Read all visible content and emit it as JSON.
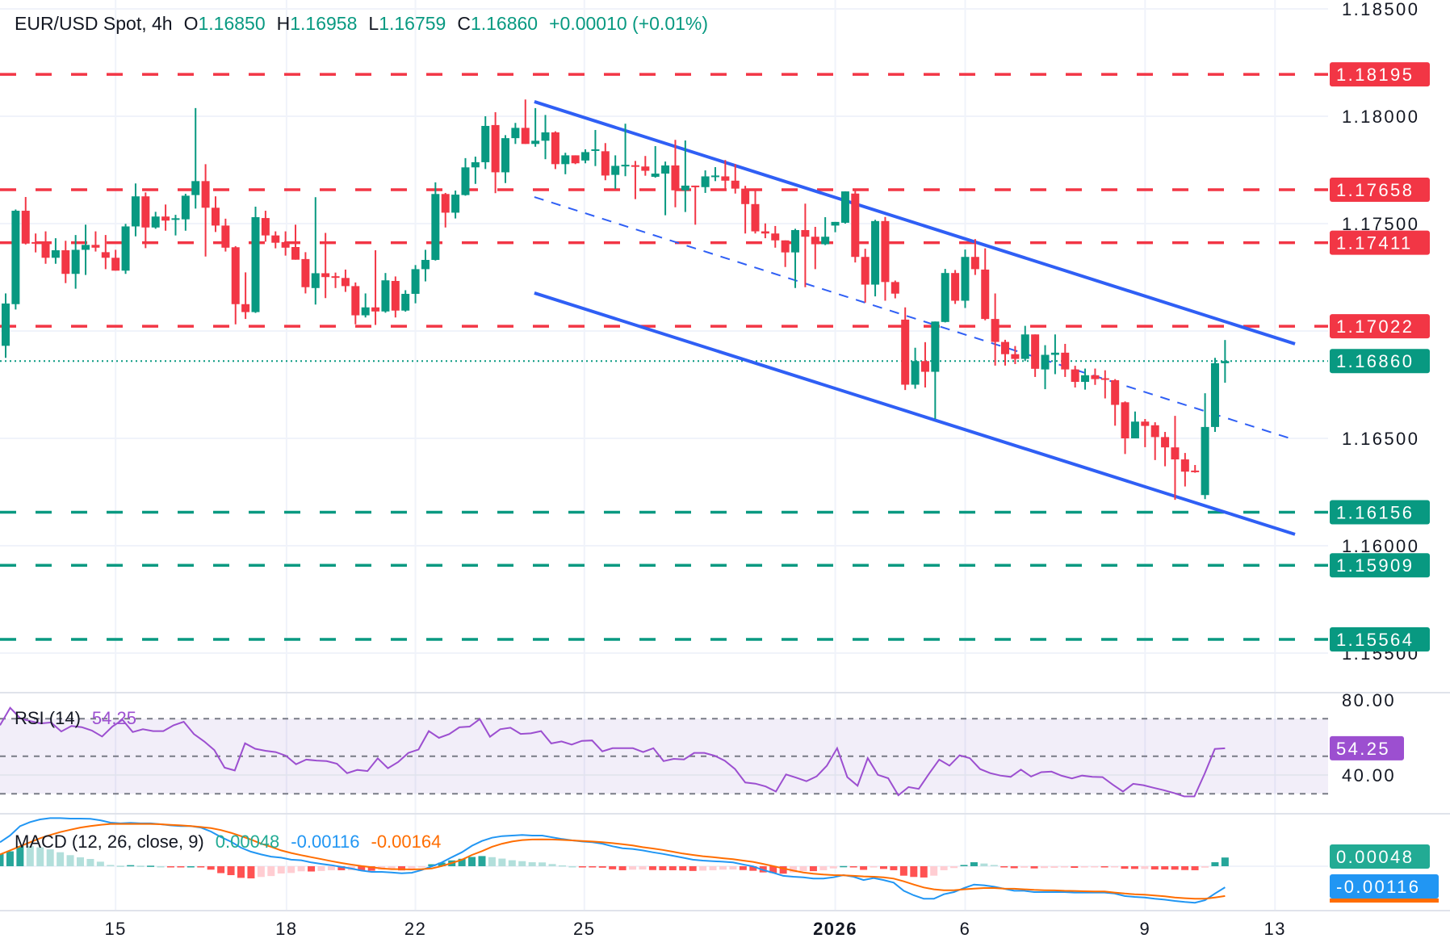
{
  "legend": {
    "title": "EUR/USD Spot, 4h",
    "open_label": "O",
    "open": "1.16850",
    "high_label": "H",
    "high": "1.16958",
    "low_label": "L",
    "low": "1.16759",
    "close_label": "C",
    "close": "1.16860",
    "change": "+0.00010 (+0.01%)"
  },
  "colors": {
    "up": "#089981",
    "down": "#f23645",
    "trendline": "#2f5ff5",
    "rsi": "#9c4fd0",
    "macd": "#2196f3",
    "signal": "#ff6d00",
    "hist_up_strong": "#26a69a",
    "hist_up_weak": "#b2dfdb",
    "hist_down_strong": "#ff5252",
    "hist_down_weak": "#ffcdd2"
  },
  "chart_data": {
    "type": "candlestick",
    "y_ticks": [
      "1.18500",
      "1.18000",
      "1.17500",
      "1.16500",
      "1.16000",
      "1.15500"
    ],
    "x_ticks": [
      {
        "label": "15",
        "bar": 11,
        "bold": false
      },
      {
        "label": "18",
        "bar": 28.1,
        "bold": false
      },
      {
        "label": "22",
        "bar": 41,
        "bold": false
      },
      {
        "label": "25",
        "bar": 57.9,
        "bold": false
      },
      {
        "label": "2026",
        "bar": 83,
        "bold": true
      },
      {
        "label": "6",
        "bar": 96,
        "bold": false
      },
      {
        "label": "9",
        "bar": 114,
        "bold": false
      },
      {
        "label": "13",
        "bar": 127,
        "bold": false
      }
    ],
    "grid": true,
    "candles_ohlc": [
      [
        1.16931,
        1.17175,
        1.16875,
        1.17128
      ],
      [
        1.17125,
        1.17566,
        1.171,
        1.1756
      ],
      [
        1.1756,
        1.17624,
        1.17403,
        1.17407
      ],
      [
        1.17414,
        1.17454,
        1.17366,
        1.17407
      ],
      [
        1.17414,
        1.17464,
        1.17313,
        1.17341
      ],
      [
        1.17341,
        1.17432,
        1.17313,
        1.17376
      ],
      [
        1.17376,
        1.1742,
        1.17223,
        1.17266
      ],
      [
        1.17266,
        1.17447,
        1.17197,
        1.17378
      ],
      [
        1.17378,
        1.17495,
        1.17261,
        1.17401
      ],
      [
        1.17401,
        1.17464,
        1.1737,
        1.17388
      ],
      [
        1.17367,
        1.17447,
        1.17288,
        1.17341
      ],
      [
        1.17341,
        1.17378,
        1.17281,
        1.17281
      ],
      [
        1.17281,
        1.17499,
        1.17266,
        1.17487
      ],
      [
        1.17487,
        1.17687,
        1.17441,
        1.17627
      ],
      [
        1.17627,
        1.17645,
        1.17386,
        1.17482
      ],
      [
        1.17482,
        1.17555,
        1.17476,
        1.17533
      ],
      [
        1.17533,
        1.17589,
        1.17467,
        1.17514
      ],
      [
        1.1752,
        1.17541,
        1.17445,
        1.17525
      ],
      [
        1.1752,
        1.17639,
        1.17467,
        1.1763
      ],
      [
        1.17633,
        1.18038,
        1.1757,
        1.17698
      ],
      [
        1.17698,
        1.17777,
        1.17347,
        1.17574
      ],
      [
        1.17574,
        1.17627,
        1.17461,
        1.17491
      ],
      [
        1.17491,
        1.17523,
        1.1737,
        1.17388
      ],
      [
        1.1739,
        1.17395,
        1.17031,
        1.17125
      ],
      [
        1.17125,
        1.17273,
        1.17056,
        1.17088
      ],
      [
        1.17088,
        1.17579,
        1.17084,
        1.1753
      ],
      [
        1.17526,
        1.1756,
        1.17416,
        1.17445
      ],
      [
        1.17445,
        1.17464,
        1.17385,
        1.17411
      ],
      [
        1.17414,
        1.17464,
        1.17351,
        1.17388
      ],
      [
        1.17391,
        1.17495,
        1.17332,
        1.17332
      ],
      [
        1.17335,
        1.17367,
        1.17175,
        1.17204
      ],
      [
        1.172,
        1.17623,
        1.17123,
        1.17269
      ],
      [
        1.17269,
        1.17457,
        1.17153,
        1.17251
      ],
      [
        1.17255,
        1.17272,
        1.172,
        1.17251
      ],
      [
        1.17247,
        1.17286,
        1.17182,
        1.17209
      ],
      [
        1.17209,
        1.17226,
        1.17031,
        1.17073
      ],
      [
        1.17073,
        1.17175,
        1.17063,
        1.1711
      ],
      [
        1.1711,
        1.17376,
        1.17028,
        1.17091
      ],
      [
        1.17091,
        1.1727,
        1.17085,
        1.17236
      ],
      [
        1.17233,
        1.17254,
        1.17063,
        1.17095
      ],
      [
        1.17095,
        1.1719,
        1.1709,
        1.17173
      ],
      [
        1.17173,
        1.17307,
        1.17129,
        1.17288
      ],
      [
        1.17288,
        1.17378,
        1.17231,
        1.17331
      ],
      [
        1.17331,
        1.17692,
        1.17328,
        1.17638
      ],
      [
        1.17638,
        1.17643,
        1.17482,
        1.17551
      ],
      [
        1.17551,
        1.17654,
        1.17524,
        1.17635
      ],
      [
        1.17633,
        1.17805,
        1.1763,
        1.17762
      ],
      [
        1.17762,
        1.17812,
        1.17685,
        1.17786
      ],
      [
        1.17786,
        1.18,
        1.17754,
        1.17955
      ],
      [
        1.17959,
        1.18019,
        1.17642,
        1.17739
      ],
      [
        1.17739,
        1.17912,
        1.17689,
        1.17898
      ],
      [
        1.17898,
        1.17969,
        1.17871,
        1.17946
      ],
      [
        1.17946,
        1.18078,
        1.17871,
        1.17871
      ],
      [
        1.17871,
        1.18038,
        1.17858,
        1.17886
      ],
      [
        1.17886,
        1.18006,
        1.178,
        1.17925
      ],
      [
        1.17925,
        1.1793,
        1.17754,
        1.17777
      ],
      [
        1.17777,
        1.1783,
        1.1773,
        1.17818
      ],
      [
        1.17818,
        1.17818,
        1.17777,
        1.17781
      ],
      [
        1.17794,
        1.17846,
        1.17781,
        1.17833
      ],
      [
        1.17843,
        1.17936,
        1.17768,
        1.17846
      ],
      [
        1.17837,
        1.17875,
        1.17702,
        1.17724
      ],
      [
        1.17727,
        1.17818,
        1.17662,
        1.17769
      ],
      [
        1.17771,
        1.17965,
        1.17721,
        1.17774
      ],
      [
        1.17772,
        1.17792,
        1.17614,
        1.17766
      ],
      [
        1.17766,
        1.17815,
        1.17723,
        1.17746
      ],
      [
        1.17718,
        1.17861,
        1.17714,
        1.17733
      ],
      [
        1.17733,
        1.17789,
        1.17539,
        1.17771
      ],
      [
        1.17771,
        1.1789,
        1.17576,
        1.17655
      ],
      [
        1.17655,
        1.17887,
        1.17554,
        1.17677
      ],
      [
        1.17677,
        1.17677,
        1.17495,
        1.17674
      ],
      [
        1.1767,
        1.17748,
        1.17643,
        1.1772
      ],
      [
        1.1772,
        1.17763,
        1.17698,
        1.17724
      ],
      [
        1.1772,
        1.17796,
        1.17662,
        1.177
      ],
      [
        1.177,
        1.17777,
        1.1764,
        1.17663
      ],
      [
        1.17663,
        1.17676,
        1.17454,
        1.17591
      ],
      [
        1.17591,
        1.17663,
        1.17454,
        1.17464
      ],
      [
        1.17464,
        1.17501,
        1.17432,
        1.17454
      ],
      [
        1.17454,
        1.17489,
        1.17388,
        1.17422
      ],
      [
        1.17422,
        1.17422,
        1.17298,
        1.17366
      ],
      [
        1.17366,
        1.17476,
        1.172,
        1.1747
      ],
      [
        1.1747,
        1.17593,
        1.17204,
        1.17439
      ],
      [
        1.17439,
        1.17485,
        1.17288,
        1.17404
      ],
      [
        1.17404,
        1.1753,
        1.174,
        1.17439
      ],
      [
        1.17491,
        1.17508,
        1.1746,
        1.17508
      ],
      [
        1.17504,
        1.1765,
        1.175,
        1.1765
      ],
      [
        1.1764,
        1.1766,
        1.17319,
        1.17345
      ],
      [
        1.17345,
        1.17383,
        1.17132,
        1.17216
      ],
      [
        1.17216,
        1.17518,
        1.17161,
        1.17512
      ],
      [
        1.17512,
        1.17531,
        1.17141,
        1.17228
      ],
      [
        1.17228,
        1.17235,
        1.17152,
        1.17174
      ],
      [
        1.17053,
        1.1711,
        1.16725,
        1.1675
      ],
      [
        1.1675,
        1.16922,
        1.16731,
        1.1686
      ],
      [
        1.1686,
        1.16948,
        1.16737,
        1.1681
      ],
      [
        1.1681,
        1.17044,
        1.1659,
        1.17044
      ],
      [
        1.17042,
        1.17289,
        1.1704,
        1.1727
      ],
      [
        1.1727,
        1.17284,
        1.17126,
        1.17141
      ],
      [
        1.17141,
        1.17379,
        1.17107,
        1.17345
      ],
      [
        1.17345,
        1.17428,
        1.17261,
        1.17288
      ],
      [
        1.17286,
        1.17385,
        1.1705,
        1.17056
      ],
      [
        1.17056,
        1.17175,
        1.16839,
        1.16949
      ],
      [
        1.16949,
        1.16959,
        1.16839,
        1.16892
      ],
      [
        1.16892,
        1.1693,
        1.16846,
        1.1687
      ],
      [
        1.1687,
        1.17024,
        1.1686,
        1.16984
      ],
      [
        1.16984,
        1.16984,
        1.16786,
        1.16824
      ],
      [
        1.16821,
        1.16934,
        1.16729,
        1.16889
      ],
      [
        1.16889,
        1.16984,
        1.16799,
        1.16899
      ],
      [
        1.16899,
        1.1694,
        1.16786,
        1.16821
      ],
      [
        1.16821,
        1.16838,
        1.16737,
        1.16763
      ],
      [
        1.16763,
        1.16825,
        1.16727,
        1.16794
      ],
      [
        1.16794,
        1.16825,
        1.16749,
        1.16776
      ],
      [
        1.1678,
        1.16817,
        1.16686,
        1.16776
      ],
      [
        1.16771,
        1.16776,
        1.16559,
        1.16656
      ],
      [
        1.16668,
        1.16672,
        1.16427,
        1.165
      ],
      [
        1.165,
        1.16625,
        1.165,
        1.16578
      ],
      [
        1.16578,
        1.1659,
        1.16459,
        1.16558
      ],
      [
        1.16561,
        1.16575,
        1.16399,
        1.16506
      ],
      [
        1.16506,
        1.1653,
        1.1637,
        1.16458
      ],
      [
        1.16458,
        1.16605,
        1.16214,
        1.16402
      ],
      [
        1.16402,
        1.16432,
        1.16276,
        1.16345
      ],
      [
        1.1635,
        1.16376,
        1.1634,
        1.16345
      ],
      [
        1.16236,
        1.1671,
        1.16217,
        1.16553
      ],
      [
        1.16553,
        1.16875,
        1.1653,
        1.1685
      ],
      [
        1.1685,
        1.16958,
        1.16759,
        1.1686
      ]
    ],
    "current_price": "1.16860",
    "resistance_levels": [
      "1.18195",
      "1.17658",
      "1.17411",
      "1.17022"
    ],
    "support_levels": [
      "1.16156",
      "1.15909",
      "1.15564"
    ],
    "trendlines": [
      {
        "role": "channel-upper",
        "style": "solid",
        "start": {
          "bar": 52.9,
          "price": 1.18068
        },
        "end": {
          "bar": 129,
          "price": 1.1694
        }
      },
      {
        "role": "channel-mid",
        "style": "dashed",
        "start": {
          "bar": 52.9,
          "price": 1.17624
        },
        "end": {
          "bar": 128.5,
          "price": 1.165
        }
      },
      {
        "role": "channel-lower",
        "style": "solid",
        "start": {
          "bar": 52.9,
          "price": 1.17177
        },
        "end": {
          "bar": 129,
          "price": 1.16053
        }
      }
    ],
    "rsi": {
      "label": "RSI (14)",
      "last": "54.25",
      "axis_ticks": [
        "80.00",
        "40.00"
      ],
      "bands": [
        70,
        50,
        30
      ],
      "values": [
        66.5,
        75.8,
        70.1,
        68.7,
        67.5,
        68.0,
        63.2,
        66.1,
        65.5,
        63.7,
        60.5,
        65.8,
        69.4,
        62.9,
        64.4,
        63.4,
        63.4,
        66.5,
        68.4,
        61.8,
        57.9,
        53.3,
        43.9,
        42.4,
        56.9,
        54.0,
        52.9,
        52.2,
        50.3,
        45.7,
        48.2,
        47.7,
        47.4,
        46.0,
        41.0,
        42.7,
        42.1,
        48.9,
        43.6,
        46.9,
        51.8,
        53.6,
        63.4,
        59.8,
        61.8,
        65.4,
        65.8,
        69.8,
        60.4,
        64.4,
        65.2,
        61.9,
        62.2,
        63.4,
        56.8,
        57.9,
        56.2,
        58.2,
        58.4,
        52.6,
        54.3,
        54.3,
        54.3,
        52.2,
        54.3,
        47.4,
        48.6,
        48.3,
        51.8,
        51.8,
        50.3,
        47.6,
        43.2,
        36.0,
        35.4,
        33.9,
        31.2,
        40.3,
        38.6,
        36.7,
        39.3,
        45.0,
        54.3,
        38.9,
        34.3,
        49.0,
        40.1,
        38.3,
        29.2,
        33.6,
        32.6,
        40.7,
        48.2,
        45.0,
        50.5,
        49.0,
        43.2,
        41.0,
        39.7,
        39.0,
        42.9,
        39.2,
        41.5,
        41.8,
        39.6,
        38.2,
        39.7,
        39.0,
        38.9,
        34.9,
        31.2,
        35.3,
        34.6,
        33.2,
        31.9,
        30.4,
        28.6,
        28.6,
        40.7,
        53.9,
        54.25
      ]
    },
    "macd": {
      "label": "MACD (12, 26, close, 9)",
      "histogram_last": "0.00048",
      "macd_last": "-0.00116",
      "signal_last": "-0.00164",
      "macd_values": [
        0.00132,
        0.00169,
        0.00221,
        0.00243,
        0.00258,
        0.00265,
        0.00265,
        0.00262,
        0.00262,
        0.00261,
        0.00253,
        0.0024,
        0.00236,
        0.00239,
        0.00236,
        0.00236,
        0.00231,
        0.00225,
        0.00221,
        0.00221,
        0.00213,
        0.00191,
        0.00161,
        0.00135,
        0.00102,
        0.0008,
        0.00065,
        0.00053,
        0.00047,
        0.00036,
        0.00033,
        0.00021,
        0.00013,
        6e-05,
        -4e-05,
        -0.00013,
        -0.00024,
        -0.00031,
        -0.00031,
        -0.00034,
        -0.00039,
        -0.00036,
        -0.00021,
        -1e-05,
        0.00021,
        0.0005,
        0.00077,
        0.00113,
        0.00139,
        0.00157,
        0.00166,
        0.00169,
        0.00172,
        0.00169,
        0.00169,
        0.00159,
        0.0015,
        0.00142,
        0.00136,
        0.00132,
        0.00124,
        0.0011,
        0.00099,
        0.00095,
        0.00087,
        0.00077,
        0.00068,
        0.00058,
        0.00047,
        0.00036,
        0.00031,
        0.00028,
        0.00025,
        0.00021,
        0.0001,
        -1e-05,
        -0.00021,
        -0.00036,
        -0.00053,
        -0.00058,
        -0.00061,
        -0.00068,
        -0.00068,
        -0.00061,
        -0.00049,
        -0.00058,
        -0.00076,
        -0.00065,
        -0.00076,
        -0.0009,
        -0.00135,
        -0.0016,
        -0.00179,
        -0.00179,
        -0.00154,
        -0.00142,
        -0.0012,
        -0.00101,
        -0.00105,
        -0.00113,
        -0.00124,
        -0.00135,
        -0.00135,
        -0.00142,
        -0.00142,
        -0.00142,
        -0.00142,
        -0.00145,
        -0.00145,
        -0.00145,
        -0.00145,
        -0.0015,
        -0.00164,
        -0.00169,
        -0.00172,
        -0.00179,
        -0.00184,
        -0.00191,
        -0.00197,
        -0.00201,
        -0.00187,
        -0.0015,
        -0.00116
      ],
      "signal_values": [
        0.00065,
        0.00087,
        0.0011,
        0.00132,
        0.00154,
        0.00172,
        0.00188,
        0.00201,
        0.00213,
        0.00221,
        0.00228,
        0.00233,
        0.00233,
        0.00233,
        0.00233,
        0.00233,
        0.00231,
        0.00228,
        0.00225,
        0.00221,
        0.00216,
        0.0021,
        0.00199,
        0.00184,
        0.00166,
        0.00147,
        0.00124,
        0.00107,
        0.00087,
        0.00073,
        0.00061,
        0.0005,
        0.00039,
        0.00028,
        0.00018,
        9e-05,
        1e-05,
        -6e-05,
        -0.00012,
        -0.00016,
        -0.00016,
        -0.00018,
        -0.00016,
        -0.00012,
        1e-05,
        0.00018,
        0.00036,
        0.00062,
        0.00083,
        0.00107,
        0.00124,
        0.00136,
        0.00144,
        0.00147,
        0.00148,
        0.00147,
        0.00145,
        0.00142,
        0.00139,
        0.00136,
        0.00132,
        0.00127,
        0.00121,
        0.00114,
        0.00105,
        0.00098,
        0.0009,
        0.0008,
        0.0007,
        0.00062,
        0.00055,
        0.0005,
        0.00044,
        0.00039,
        0.00031,
        0.00024,
        0.00013,
        1e-05,
        -0.00012,
        -0.00024,
        -0.00034,
        -0.00041,
        -0.00046,
        -0.00049,
        -0.0005,
        -0.00053,
        -0.00056,
        -0.00058,
        -0.00061,
        -0.00068,
        -0.00083,
        -0.00101,
        -0.00117,
        -0.00127,
        -0.00132,
        -0.00132,
        -0.00127,
        -0.00123,
        -0.0012,
        -0.0012,
        -0.00123,
        -0.00124,
        -0.00127,
        -0.0013,
        -0.00132,
        -0.00133,
        -0.00135,
        -0.00136,
        -0.00138,
        -0.00139,
        -0.00139,
        -0.00145,
        -0.0015,
        -0.00154,
        -0.00157,
        -0.00161,
        -0.00166,
        -0.00172,
        -0.00176,
        -0.00179,
        -0.00179,
        -0.00172,
        -0.00164
      ]
    }
  }
}
